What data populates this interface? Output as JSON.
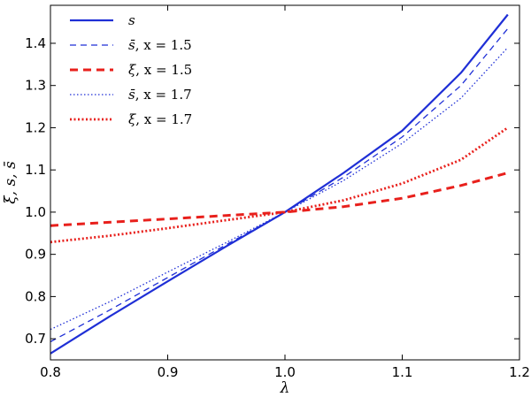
{
  "chart_data": {
    "type": "line",
    "xlabel": "λ",
    "ylabel": "ξ, s, s̄",
    "xlim": [
      0.8,
      1.2
    ],
    "ylim": [
      0.65,
      1.49
    ],
    "xticks": [
      "0.8",
      "0.9",
      "1.0",
      "1.1",
      "1.2"
    ],
    "yticks": [
      "0.7",
      "0.8",
      "0.9",
      "1.0",
      "1.1",
      "1.2",
      "1.3",
      "1.4"
    ],
    "grid": false,
    "legend_position": "top-left",
    "series": [
      {
        "name": "s",
        "color": "#1f2fd6",
        "style": "solid",
        "x": [
          0.8,
          0.85,
          0.9,
          0.95,
          1.0,
          1.05,
          1.1,
          1.15,
          1.19
        ],
        "values": [
          0.665,
          0.752,
          0.836,
          0.919,
          1.0,
          1.093,
          1.193,
          1.33,
          1.468
        ]
      },
      {
        "name": "s̄, x = 1.5",
        "color": "#1f2fd6",
        "style": "dashed",
        "x": [
          0.8,
          0.85,
          0.9,
          0.95,
          1.0,
          1.05,
          1.1,
          1.15,
          1.19
        ],
        "values": [
          0.693,
          0.767,
          0.845,
          0.923,
          1.0,
          1.083,
          1.178,
          1.3,
          1.435
        ]
      },
      {
        "name": "ξ, x = 1.5",
        "color": "#e8201c",
        "style": "thick-dashed",
        "x": [
          0.8,
          0.85,
          0.9,
          0.95,
          1.0,
          1.05,
          1.1,
          1.15,
          1.19
        ],
        "values": [
          0.968,
          0.976,
          0.984,
          0.992,
          1.0,
          1.013,
          1.033,
          1.063,
          1.093
        ]
      },
      {
        "name": "s̄, x = 1.7",
        "color": "#1f2fd6",
        "style": "dotted",
        "x": [
          0.8,
          0.85,
          0.9,
          0.95,
          1.0,
          1.05,
          1.1,
          1.15,
          1.19
        ],
        "values": [
          0.722,
          0.787,
          0.858,
          0.928,
          1.0,
          1.075,
          1.163,
          1.27,
          1.39
        ]
      },
      {
        "name": "ξ, x = 1.7",
        "color": "#e8201c",
        "style": "thick-dotted",
        "x": [
          0.8,
          0.85,
          0.9,
          0.95,
          1.0,
          1.05,
          1.1,
          1.15,
          1.19
        ],
        "values": [
          0.929,
          0.944,
          0.962,
          0.981,
          1.0,
          1.028,
          1.068,
          1.124,
          1.2
        ]
      }
    ],
    "legend": [
      {
        "symbol": "s",
        "suffix": ""
      },
      {
        "symbol": "s̄",
        "suffix": ", x = 1.5"
      },
      {
        "symbol": "ξ",
        "suffix": ", x = 1.5"
      },
      {
        "symbol": "s̄",
        "suffix": ", x = 1.7"
      },
      {
        "symbol": "ξ",
        "suffix": ", x = 1.7"
      }
    ]
  }
}
